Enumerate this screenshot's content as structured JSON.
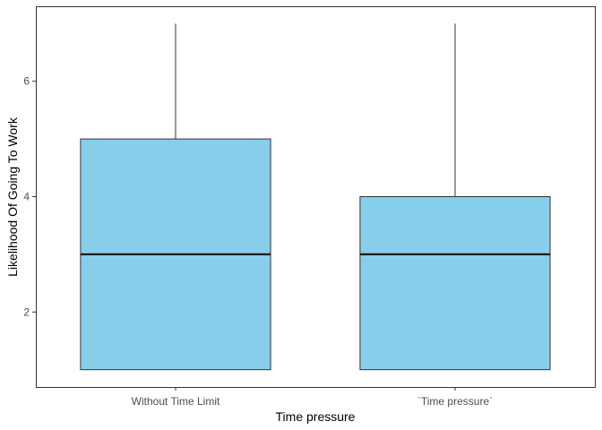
{
  "chart_data": {
    "type": "boxplot",
    "title": "",
    "xlabel": "Time pressure",
    "ylabel": "Likelihood Of Going To Work",
    "categories": [
      "Without Time Limit",
      "`Time pressure`"
    ],
    "boxes": [
      {
        "category": "Without Time Limit",
        "min": 1,
        "q1": 1,
        "median": 3,
        "q3": 5,
        "max": 7
      },
      {
        "category": "`Time pressure`",
        "min": 1,
        "q1": 1,
        "median": 3,
        "q3": 4,
        "max": 7
      }
    ],
    "ylim": [
      0.7,
      7.3
    ],
    "yticks": [
      2,
      4,
      6
    ],
    "grid": false,
    "colors": {
      "box_fill": "#87CEEB",
      "box_stroke": "#333333",
      "axis": "#333333",
      "tick_text": "#4d4d4d"
    }
  }
}
